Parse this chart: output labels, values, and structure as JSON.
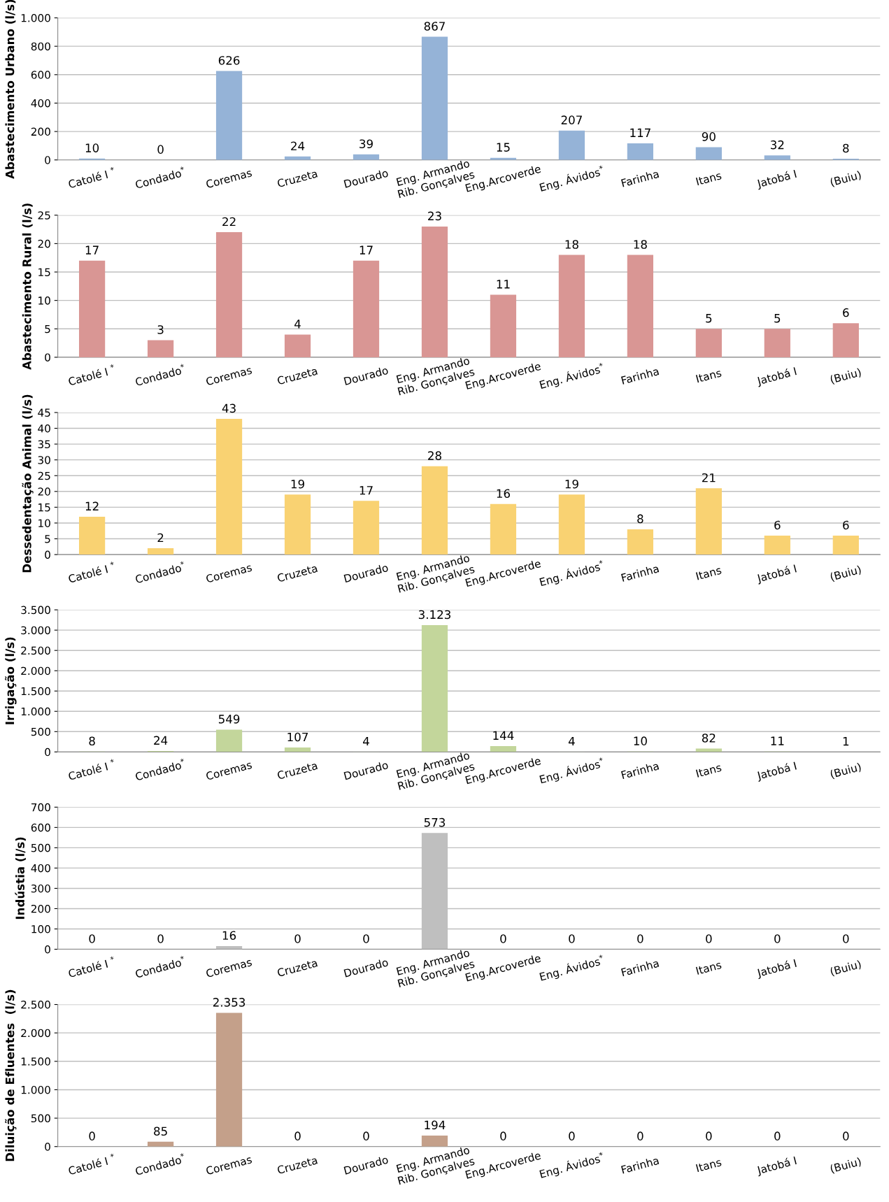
{
  "chart_data": [
    {
      "type": "bar",
      "ylabel": "Abastecimento Urbano (l/s)",
      "categories": [
        "Catolé I $^{*}$",
        "Condado$^{*}$",
        "Coremas",
        "Cruzeta",
        "Dourado",
        "Eng. Armando\nRib. Gonçalves",
        "Eng.Arcoverde",
        "Eng. Ávidos$^{*}$",
        "Farinha",
        "Itans",
        "Jatobá I",
        "(Buiu)"
      ],
      "values": [
        10,
        0,
        626,
        24,
        39,
        867,
        15,
        207,
        117,
        90,
        32,
        8
      ],
      "color": "#95b3d7",
      "ylim": [
        0,
        1000
      ],
      "yticks": [
        0,
        200,
        400,
        600,
        800,
        {
          "value": 1000,
          "label": "1.000"
        }
      ],
      "grid": "y",
      "data_labels": true
    },
    {
      "type": "bar",
      "ylabel": "Abastecimento Rural (l/s)",
      "categories": [
        "Catolé I $^{*}$",
        "Condado$^{*}$",
        "Coremas",
        "Cruzeta",
        "Dourado",
        "Eng. Armando\nRib. Gonçalves",
        "Eng.Arcoverde",
        "Eng. Ávidos$^{*}$",
        "Farinha",
        "Itans",
        "Jatobá I",
        "(Buiu)"
      ],
      "values": [
        17,
        3,
        22,
        4,
        17,
        23,
        11,
        18,
        18,
        5,
        5,
        6
      ],
      "color": "#d99694",
      "ylim": [
        0,
        25
      ],
      "yticks": [
        0,
        5,
        10,
        15,
        20,
        25
      ],
      "grid": "y",
      "data_labels": true
    },
    {
      "type": "bar",
      "ylabel": "Dessedentação Animal (l/s)",
      "categories": [
        "Catolé I $^{*}$",
        "Condado$^{*}$",
        "Coremas",
        "Cruzeta",
        "Dourado",
        "Eng. Armando\nRib. Gonçalves",
        "Eng.Arcoverde",
        "Eng. Ávidos$^{*}$",
        "Farinha",
        "Itans",
        "Jatobá I",
        "(Buiu)"
      ],
      "values": [
        12,
        2,
        43,
        19,
        17,
        28,
        16,
        19,
        8,
        21,
        6,
        6
      ],
      "color": "#f9d272",
      "ylim": [
        0,
        45
      ],
      "yticks": [
        0,
        5,
        10,
        15,
        20,
        25,
        30,
        35,
        40,
        45
      ],
      "grid": "y",
      "data_labels": true
    },
    {
      "type": "bar",
      "ylabel": "Irrigação (l/s)",
      "categories": [
        "Catolé I $^{*}$",
        "Condado$^{*}$",
        "Coremas",
        "Cruzeta",
        "Dourado",
        "Eng. Armando\nRib. Gonçalves",
        "Eng.Arcoverde",
        "Eng. Ávidos$^{*}$",
        "Farinha",
        "Itans",
        "Jatobá I",
        "(Buiu)"
      ],
      "values": [
        8,
        24,
        549,
        107,
        4,
        3123,
        144,
        4,
        10,
        82,
        11,
        1
      ],
      "value_labels": [
        "8",
        "24",
        "549",
        "107",
        "4",
        "3.123",
        "144",
        "4",
        "10",
        "82",
        "11",
        "1"
      ],
      "color": "#c3d69b",
      "ylim": [
        0,
        3500
      ],
      "yticks": [
        0,
        500,
        {
          "value": 1000,
          "label": "1.000"
        },
        {
          "value": 1500,
          "label": "1.500"
        },
        {
          "value": 2000,
          "label": "2.000"
        },
        {
          "value": 2500,
          "label": "2.500"
        },
        {
          "value": 3000,
          "label": "3.000"
        },
        {
          "value": 3500,
          "label": "3.500"
        }
      ],
      "grid": "y"
    },
    {
      "type": "bar",
      "ylabel": "Indústia (l/s)",
      "categories": [
        "Catolé I $^{*}$",
        "Condado$^{*}$",
        "Coremas",
        "Cruzeta",
        "Dourado",
        "Eng. Armando\nRib. Gonçalves",
        "Eng.Arcoverde",
        "Eng. Ávidos$^{*}$",
        "Farinha",
        "Itans",
        "Jatobá I",
        "(Buiu)"
      ],
      "values": [
        0,
        0,
        16,
        0,
        0,
        573,
        0,
        0,
        0,
        0,
        0,
        0
      ],
      "color": "#bfbfbf",
      "ylim": [
        0,
        700
      ],
      "yticks": [
        0,
        100,
        200,
        300,
        400,
        500,
        600,
        700
      ],
      "grid": "y",
      "data_labels": true
    },
    {
      "type": "bar",
      "ylabel": "Diluição de Efluentes  (l/s)",
      "categories": [
        "Catolé I $^{*}$",
        "Condado$^{*}$",
        "Coremas",
        "Cruzeta",
        "Dourado",
        "Eng. Armando\nRib. Gonçalves",
        "Eng.Arcoverde",
        "Eng. Ávidos$^{*}$",
        "Farinha",
        "Itans",
        "Jatobá I",
        "(Buiu)"
      ],
      "values": [
        0,
        85,
        2353,
        0,
        0,
        194,
        0,
        0,
        0,
        0,
        0,
        0
      ],
      "value_labels": [
        "0",
        "85",
        "2.353",
        "0",
        "0",
        "194",
        "0",
        "0",
        "0",
        "0",
        "0",
        "0"
      ],
      "color": "#c4a08a",
      "ylim": [
        0,
        2500
      ],
      "yticks": [
        0,
        500,
        {
          "value": 1000,
          "label": "1.000"
        },
        {
          "value": 1500,
          "label": "1.500"
        },
        {
          "value": 2000,
          "label": "2.000"
        },
        {
          "value": 2500,
          "label": "2.500"
        }
      ],
      "grid": "y"
    }
  ]
}
